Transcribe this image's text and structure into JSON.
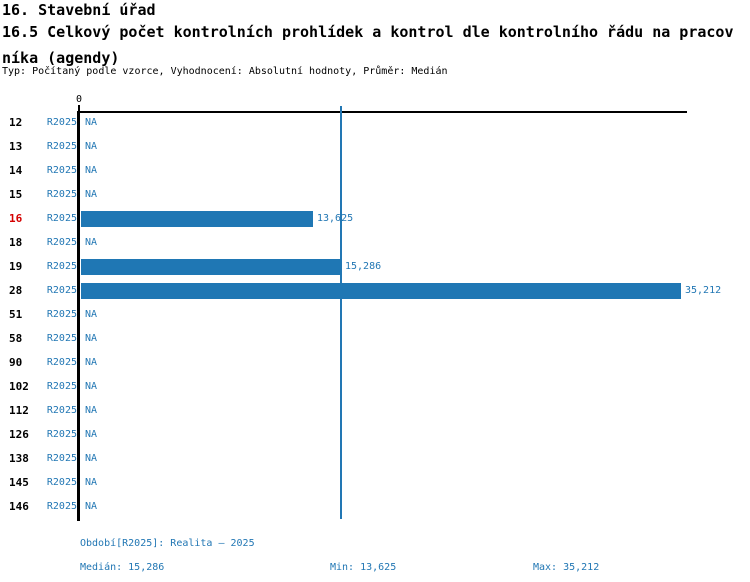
{
  "header": {
    "title": "16. Stavební úřad",
    "subtitle": "16.5 Celkový počet kontrolních prohlídek a kontrol dle kontrolního řádu na pracovníka (agendy)",
    "meta": "Typ: Počítaný podle vzorce, Vyhodnocení: Absolutní hodnoty, Průměr: Medián"
  },
  "chart_data": {
    "type": "bar",
    "orientation": "horizontal",
    "title": "16.5 Celkový počet kontrolních prohlídek a kontrol dle kontrolního řádu na pracovníka (agendy)",
    "categories": [
      "12",
      "13",
      "14",
      "15",
      "16",
      "18",
      "19",
      "28",
      "51",
      "58",
      "90",
      "102",
      "112",
      "126",
      "138",
      "145",
      "146"
    ],
    "series": [
      {
        "name": "R2025",
        "values": [
          null,
          null,
          null,
          null,
          13625,
          null,
          15286,
          35212,
          null,
          null,
          null,
          null,
          null,
          null,
          null,
          null,
          null
        ]
      }
    ],
    "value_labels": [
      "NA",
      "NA",
      "NA",
      "NA",
      "13,625",
      "NA",
      "15,286",
      "35,212",
      "NA",
      "NA",
      "NA",
      "NA",
      "NA",
      "NA",
      "NA",
      "NA",
      "NA"
    ],
    "highlighted_category": "16",
    "axis": {
      "zero_label": "0",
      "xmin": 0,
      "xmax": 35212,
      "grid": false
    },
    "median_line_value": 15286,
    "stats": {
      "median": 15286,
      "min": 13625,
      "max": 35212
    },
    "footer": {
      "period_label": "Období[R2025]: Realita – 2025",
      "median_label": "Medián: 15,286",
      "min_label": "Min: 13,625",
      "max_label": "Max: 35,212"
    },
    "colors": {
      "bar_blue": "#1f77b4",
      "text_blue": "#2277b4",
      "highlight_red": "#d40000",
      "axis_black": "#000000"
    },
    "legend_position": "none"
  }
}
